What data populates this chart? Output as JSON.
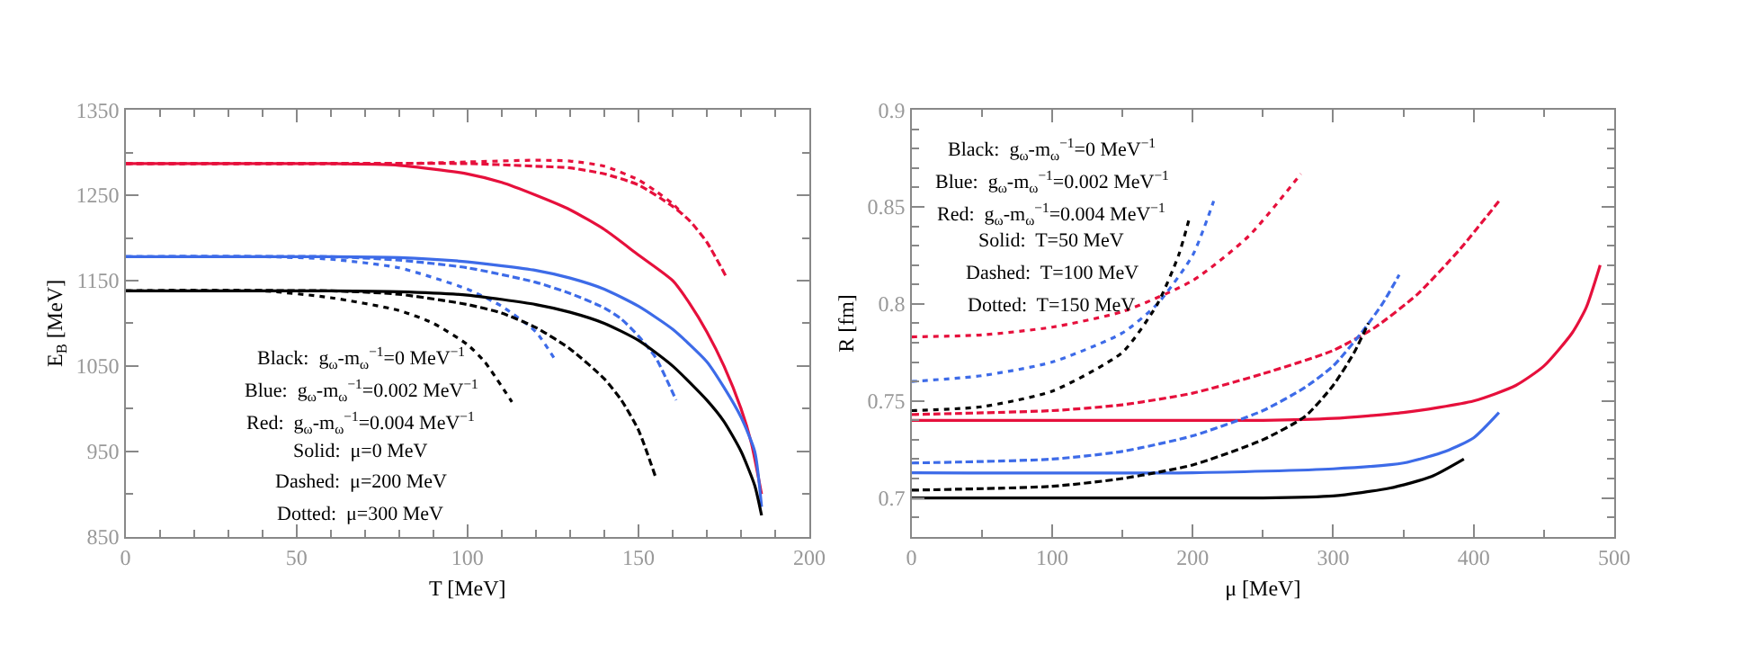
{
  "chart_data": [
    {
      "type": "line",
      "xlabel": "T [MeV]",
      "ylabel": "E$_{B}$ [MeV]",
      "xlim": [
        0,
        200
      ],
      "xticks": [
        0,
        50,
        100,
        150,
        200
      ],
      "ylim": [
        850,
        1350
      ],
      "yticks": [
        850,
        950,
        1050,
        1150,
        1250,
        1350
      ],
      "marker": "none",
      "annotations": [
        "Black:  g$_{ω}$-m$_{ω}$$^{−1}$=0 MeV$^{−1}$",
        "Blue:  g$_{ω}$-m$_{ω}$$^{−1}$=0.002 MeV$^{−1}$",
        "Red:  g$_{ω}$-m$_{ω}$$^{−1}$=0.004 MeV$^{−1}$",
        "Solid:  μ=0 MeV",
        "Dashed:  μ=200 MeV",
        "Dotted:  μ=300 MeV"
      ],
      "series": [
        {
          "color": "#e6103c",
          "line_style": "solid",
          "x": [
            0,
            60,
            80,
            100,
            110,
            120,
            130,
            140,
            150,
            160,
            165,
            170,
            175,
            180,
            183,
            186
          ],
          "values": [
            1287,
            1287,
            1285,
            1275,
            1265,
            1250,
            1233,
            1210,
            1180,
            1150,
            1123,
            1090,
            1050,
            1000,
            960,
            900
          ]
        },
        {
          "color": "#e6103c",
          "line_style": "dashed",
          "x": [
            0,
            100,
            120,
            130,
            140,
            150,
            160,
            165,
            170,
            176
          ],
          "values": [
            1287,
            1287,
            1284,
            1282,
            1275,
            1262,
            1237,
            1220,
            1195,
            1152
          ]
        },
        {
          "color": "#e6103c",
          "line_style": "dotted",
          "x": [
            0,
            80,
            100,
            120,
            130,
            140,
            150,
            155,
            160,
            163
          ],
          "values": [
            1287,
            1287,
            1289,
            1291,
            1290,
            1284,
            1268,
            1255,
            1240,
            1228
          ]
        },
        {
          "color": "#3d6be8",
          "line_style": "solid",
          "x": [
            0,
            60,
            80,
            100,
            120,
            130,
            140,
            150,
            160,
            170,
            175,
            180,
            184,
            186
          ],
          "values": [
            1178,
            1178,
            1177,
            1172,
            1162,
            1153,
            1140,
            1120,
            1093,
            1055,
            1025,
            990,
            950,
            885
          ]
        },
        {
          "color": "#3d6be8",
          "line_style": "dashed",
          "x": [
            0,
            60,
            80,
            100,
            120,
            130,
            140,
            145,
            150,
            155,
            161
          ],
          "values": [
            1178,
            1178,
            1174,
            1165,
            1148,
            1135,
            1118,
            1105,
            1085,
            1060,
            1010
          ]
        },
        {
          "color": "#3d6be8",
          "line_style": "dotted",
          "x": [
            0,
            40,
            60,
            80,
            100,
            110,
            120,
            126
          ],
          "values": [
            1178,
            1178,
            1175,
            1165,
            1140,
            1120,
            1090,
            1055
          ]
        },
        {
          "color": "#000000",
          "line_style": "solid",
          "x": [
            0,
            60,
            80,
            100,
            120,
            130,
            140,
            150,
            160,
            170,
            175,
            180,
            184,
            186
          ],
          "values": [
            1138,
            1138,
            1137,
            1133,
            1122,
            1113,
            1100,
            1080,
            1050,
            1010,
            985,
            950,
            910,
            875
          ]
        },
        {
          "color": "#000000",
          "line_style": "dashed",
          "x": [
            0,
            60,
            80,
            100,
            110,
            120,
            130,
            140,
            145,
            150,
            155
          ],
          "values": [
            1138,
            1138,
            1134,
            1122,
            1112,
            1095,
            1070,
            1035,
            1010,
            975,
            920
          ]
        },
        {
          "color": "#000000",
          "line_style": "dotted",
          "x": [
            0,
            40,
            60,
            80,
            90,
            100,
            105,
            113
          ],
          "values": [
            1138,
            1138,
            1130,
            1115,
            1100,
            1075,
            1055,
            1008
          ]
        }
      ]
    },
    {
      "type": "line",
      "xlabel": "μ [MeV]",
      "ylabel": "R [fm]",
      "xlim": [
        0,
        500
      ],
      "xticks": [
        0,
        100,
        200,
        300,
        400,
        500
      ],
      "ylim": [
        0.68,
        0.9
      ],
      "yticks": [
        0.7,
        0.75,
        0.8,
        0.85,
        0.9
      ],
      "marker": "none",
      "annotations": [
        "Black:  g$_{ω}$-m$_{ω}$$^{−1}$=0 MeV$^{−1}$",
        "Blue:  g$_{ω}$-m$_{ω}$$^{−1}$=0.002 MeV$^{−1}$",
        "Red:  g$_{ω}$-m$_{ω}$$^{−1}$=0.004 MeV$^{−1}$",
        "Solid:  T=50 MeV",
        "Dashed:  T=100 MeV",
        "Dotted:  T=150 MeV"
      ],
      "series": [
        {
          "color": "#e6103c",
          "line_style": "solid",
          "x": [
            0,
            250,
            300,
            350,
            400,
            430,
            450,
            470,
            480,
            490
          ],
          "values": [
            0.74,
            0.74,
            0.741,
            0.744,
            0.75,
            0.758,
            0.768,
            0.785,
            0.798,
            0.82
          ]
        },
        {
          "color": "#e6103c",
          "line_style": "dashed",
          "x": [
            0,
            100,
            150,
            200,
            250,
            300,
            330,
            360,
            390,
            418
          ],
          "values": [
            0.743,
            0.745,
            0.748,
            0.754,
            0.764,
            0.776,
            0.788,
            0.805,
            0.828,
            0.853
          ]
        },
        {
          "color": "#e6103c",
          "line_style": "dotted",
          "x": [
            0,
            50,
            100,
            150,
            200,
            240,
            277
          ],
          "values": [
            0.783,
            0.784,
            0.788,
            0.796,
            0.812,
            0.835,
            0.867
          ]
        },
        {
          "color": "#3d6be8",
          "line_style": "solid",
          "x": [
            0,
            200,
            300,
            350,
            380,
            400,
            418
          ],
          "values": [
            0.713,
            0.713,
            0.715,
            0.718,
            0.724,
            0.731,
            0.744
          ]
        },
        {
          "color": "#3d6be8",
          "line_style": "dashed",
          "x": [
            0,
            100,
            150,
            200,
            250,
            280,
            300,
            320,
            335,
            347
          ],
          "values": [
            0.718,
            0.72,
            0.724,
            0.732,
            0.745,
            0.757,
            0.768,
            0.785,
            0.8,
            0.815
          ]
        },
        {
          "color": "#3d6be8",
          "line_style": "dotted",
          "x": [
            0,
            50,
            100,
            150,
            175,
            200,
            215
          ],
          "values": [
            0.76,
            0.763,
            0.77,
            0.785,
            0.8,
            0.825,
            0.853
          ]
        },
        {
          "color": "#000000",
          "line_style": "solid",
          "x": [
            0,
            250,
            300,
            340,
            370,
            393
          ],
          "values": [
            0.7,
            0.7,
            0.701,
            0.705,
            0.711,
            0.72
          ]
        },
        {
          "color": "#000000",
          "line_style": "dashed",
          "x": [
            0,
            100,
            150,
            200,
            250,
            280,
            300,
            315,
            325
          ],
          "values": [
            0.704,
            0.706,
            0.71,
            0.717,
            0.73,
            0.742,
            0.758,
            0.775,
            0.79
          ]
        },
        {
          "color": "#000000",
          "line_style": "dotted",
          "x": [
            0,
            50,
            100,
            150,
            175,
            190,
            198
          ],
          "values": [
            0.745,
            0.747,
            0.755,
            0.775,
            0.8,
            0.825,
            0.845
          ]
        }
      ]
    }
  ]
}
